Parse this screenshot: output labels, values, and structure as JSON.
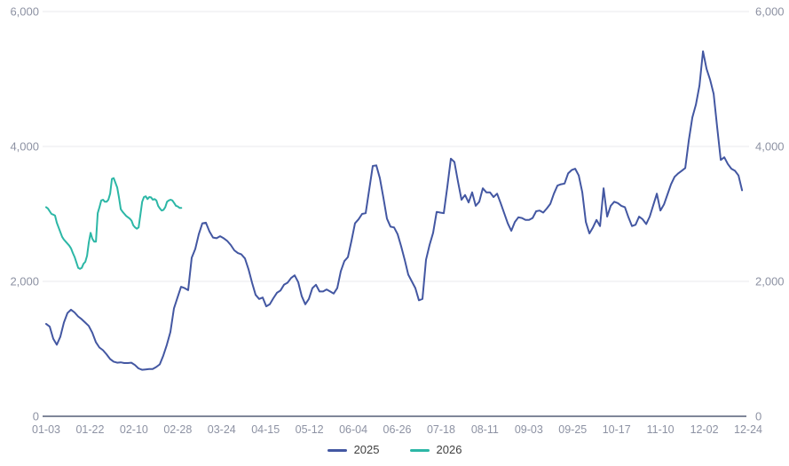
{
  "chart_data": {
    "type": "line",
    "title": "",
    "xlabel": "",
    "ylabel": "",
    "ylim": [
      0,
      6000
    ],
    "y_ticks": [
      0,
      2000,
      4000,
      6000
    ],
    "y_tick_labels": [
      "0",
      "2,000",
      "4,000",
      "6,000"
    ],
    "y_labels_both_sides": true,
    "grid": "horizontal",
    "legend_position": "bottom-center",
    "x_tick_labels": [
      "01-03",
      "01-22",
      "02-10",
      "02-28",
      "03-24",
      "04-15",
      "05-12",
      "06-04",
      "06-26",
      "07-18",
      "08-11",
      "09-03",
      "09-25",
      "10-17",
      "11-10",
      "12-02",
      "12-24"
    ],
    "x_unit": "tick-index (0 = 01-03 ... 16 = 12-24), daily data",
    "series": [
      {
        "name": "2025",
        "color": "#4357a2",
        "t_start": 0,
        "t_end": 15.86,
        "values": [
          1370,
          1330,
          1150,
          1060,
          1180,
          1390,
          1530,
          1580,
          1540,
          1480,
          1440,
          1390,
          1340,
          1240,
          1100,
          1020,
          980,
          920,
          850,
          810,
          795,
          800,
          790,
          790,
          795,
          760,
          710,
          690,
          695,
          700,
          700,
          730,
          770,
          900,
          1060,
          1250,
          1600,
          1760,
          1920,
          1900,
          1870,
          2350,
          2480,
          2700,
          2860,
          2870,
          2740,
          2650,
          2640,
          2670,
          2640,
          2600,
          2540,
          2460,
          2420,
          2400,
          2340,
          2180,
          1980,
          1800,
          1740,
          1760,
          1630,
          1660,
          1750,
          1830,
          1865,
          1950,
          1980,
          2050,
          2090,
          1990,
          1780,
          1660,
          1740,
          1900,
          1950,
          1850,
          1850,
          1880,
          1850,
          1820,
          1900,
          2150,
          2300,
          2360,
          2600,
          2860,
          2920,
          3000,
          3010,
          3360,
          3710,
          3720,
          3530,
          3240,
          2930,
          2810,
          2800,
          2700,
          2520,
          2320,
          2100,
          2000,
          1900,
          1720,
          1740,
          2320,
          2540,
          2720,
          3030,
          3020,
          3010,
          3400,
          3820,
          3770,
          3480,
          3210,
          3280,
          3170,
          3320,
          3120,
          3180,
          3380,
          3320,
          3320,
          3250,
          3300,
          3160,
          3010,
          2860,
          2750,
          2880,
          2950,
          2940,
          2910,
          2910,
          2940,
          3040,
          3050,
          3020,
          3080,
          3150,
          3300,
          3420,
          3440,
          3450,
          3600,
          3650,
          3670,
          3570,
          3320,
          2880,
          2710,
          2800,
          2910,
          2820,
          3380,
          2960,
          3120,
          3180,
          3160,
          3120,
          3100,
          2950,
          2820,
          2840,
          2960,
          2920,
          2850,
          2960,
          3130,
          3300,
          3050,
          3140,
          3290,
          3440,
          3550,
          3600,
          3640,
          3680,
          4090,
          4430,
          4620,
          4900,
          5410,
          5150,
          4990,
          4780,
          4280,
          3800,
          3840,
          3740,
          3670,
          3640,
          3570,
          3350
        ]
      },
      {
        "name": "2026",
        "color": "#2cb7a6",
        "t_start": 0,
        "t_end": 3.08,
        "values": [
          3100,
          3080,
          3040,
          3000,
          2990,
          2975,
          2870,
          2800,
          2730,
          2660,
          2620,
          2590,
          2560,
          2530,
          2490,
          2420,
          2360,
          2280,
          2200,
          2185,
          2200,
          2260,
          2290,
          2380,
          2580,
          2720,
          2630,
          2590,
          2590,
          3010,
          3100,
          3200,
          3210,
          3180,
          3180,
          3210,
          3300,
          3520,
          3530,
          3460,
          3390,
          3240,
          3070,
          3030,
          3000,
          2970,
          2950,
          2930,
          2900,
          2830,
          2800,
          2780,
          2800,
          2990,
          3180,
          3250,
          3260,
          3220,
          3250,
          3245,
          3210,
          3220,
          3200,
          3120,
          3080,
          3050,
          3060,
          3100,
          3180,
          3200,
          3210,
          3200,
          3160,
          3120,
          3110,
          3090,
          3090
        ]
      }
    ]
  },
  "legend": {
    "items": [
      {
        "label": "2025"
      },
      {
        "label": "2026"
      }
    ]
  },
  "colors": {
    "background": "#ffffff",
    "gridline": "#e8e9ed",
    "axis_line": "#7f8699",
    "tick_label": "#8d92a3",
    "legend_text": "#3f3f3f",
    "series_2025": "#4357a2",
    "series_2026": "#2cb7a6"
  }
}
